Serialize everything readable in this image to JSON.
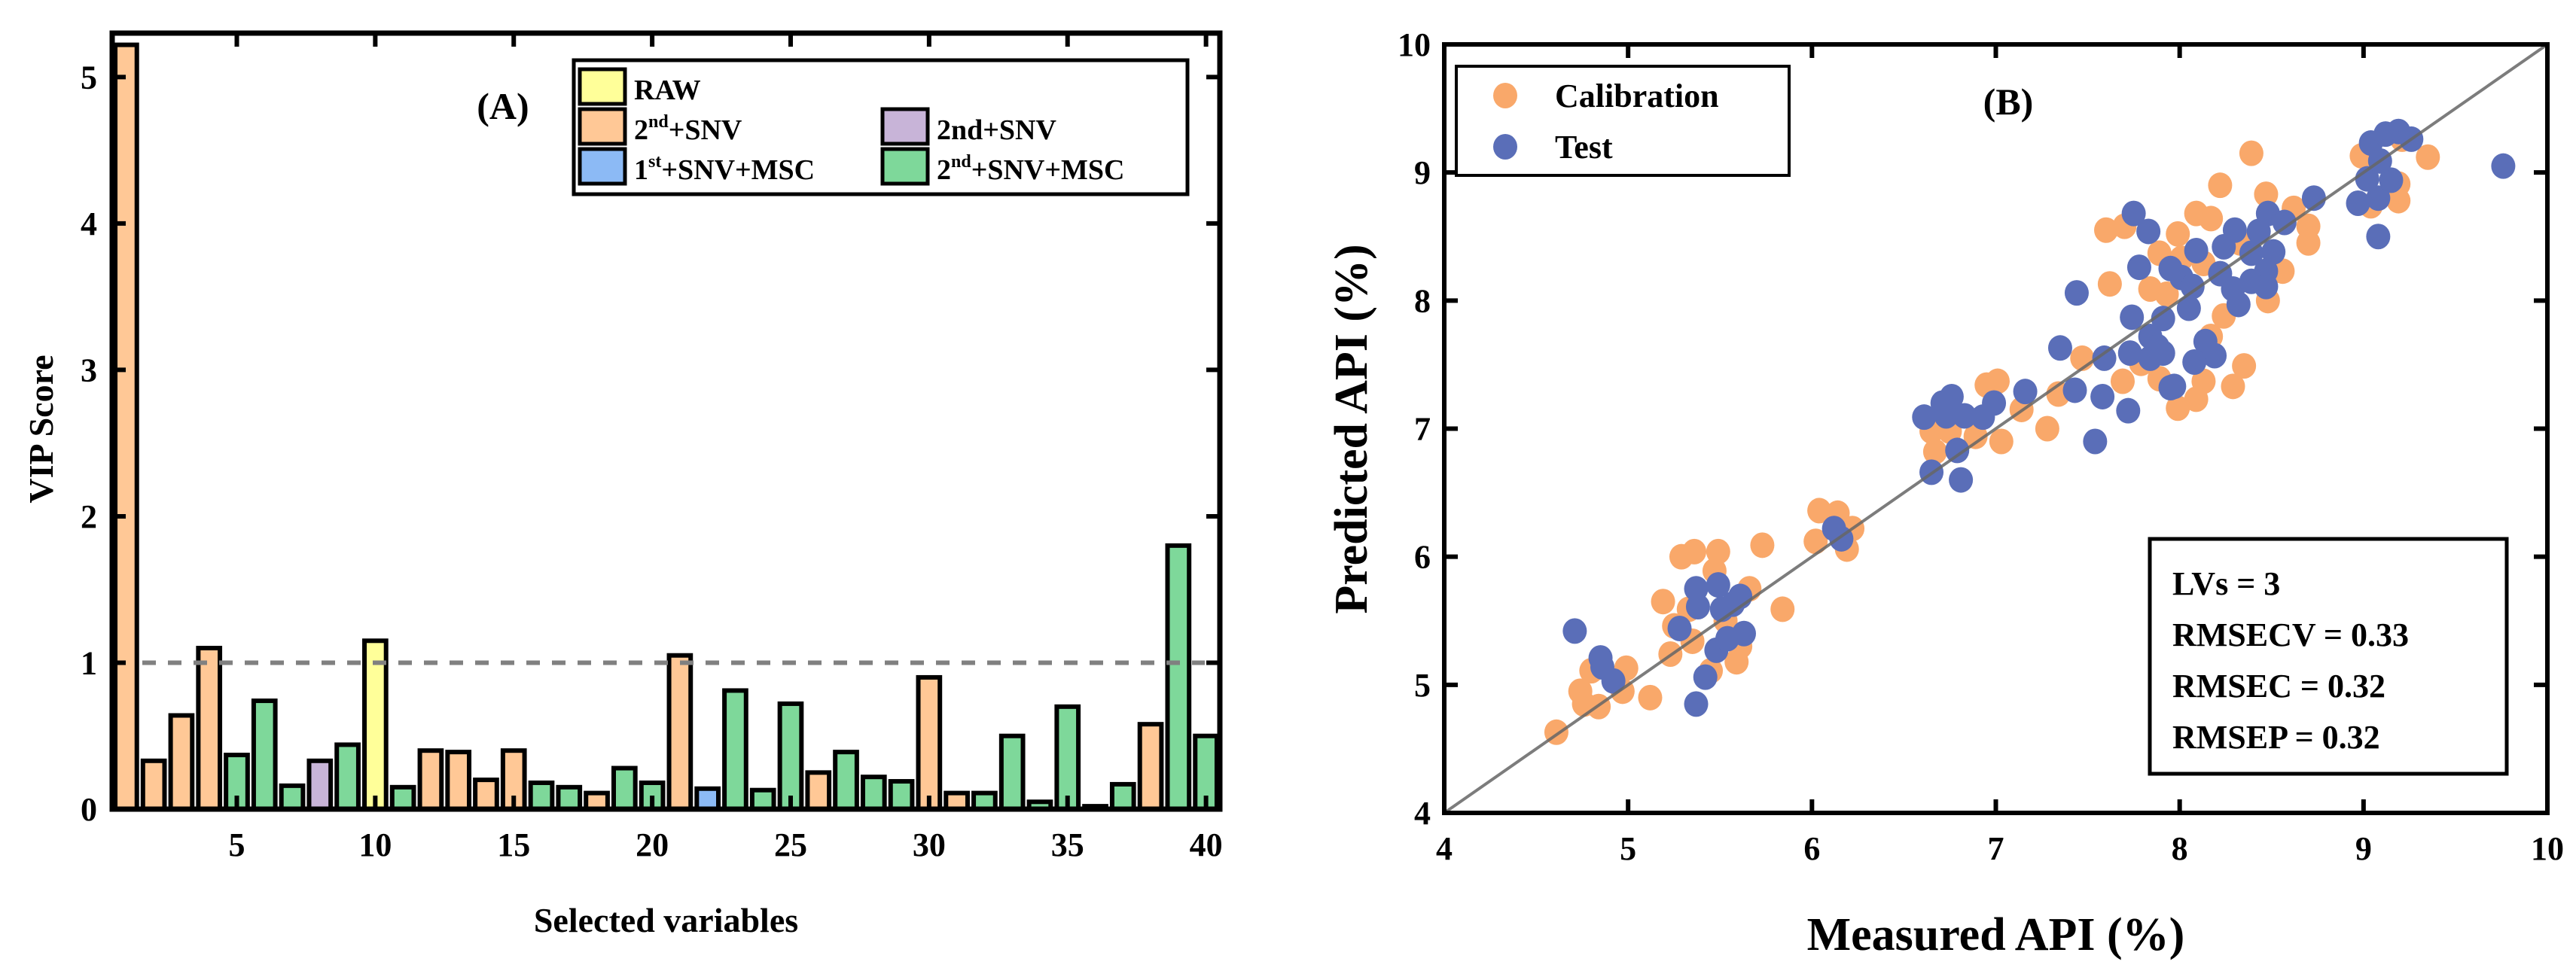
{
  "chart_data": [
    {
      "type": "bar",
      "panel_label": "(A)",
      "xlabel": "Selected variables",
      "ylabel": "VIP Score",
      "xlim": [
        0.5,
        40.5
      ],
      "ylim": [
        0,
        5.3
      ],
      "xticks": [
        5,
        10,
        15,
        20,
        25,
        30,
        35,
        40
      ],
      "yticks": [
        0,
        1,
        2,
        3,
        4,
        5
      ],
      "threshold": 1,
      "legend_position": "top-right",
      "legend": [
        {
          "key": "raw",
          "main": "RAW",
          "sup": "",
          "rest": "",
          "color": "#FFFF99"
        },
        {
          "key": "d2snv",
          "main": "2",
          "sup": "nd",
          "rest": "+SNV",
          "color": "#FFC896"
        },
        {
          "key": "d2snv_b",
          "main": "2nd+SNV",
          "sup": "",
          "rest": "",
          "color": "#C8B4D8"
        },
        {
          "key": "d1snvmsc",
          "main": "1",
          "sup": "st",
          "rest": "+SNV+MSC",
          "color": "#8CBAF5"
        },
        {
          "key": "d2snvmsc",
          "main": "2",
          "sup": "nd",
          "rest": "+SNV+MSC",
          "color": "#7ED89A"
        }
      ],
      "categories": [
        1,
        2,
        3,
        4,
        5,
        6,
        7,
        8,
        9,
        10,
        11,
        12,
        13,
        14,
        15,
        16,
        17,
        18,
        19,
        20,
        21,
        22,
        23,
        24,
        25,
        26,
        27,
        28,
        29,
        30,
        31,
        32,
        33,
        34,
        35,
        36,
        37,
        38,
        39,
        40
      ],
      "values": [
        5.22,
        0.33,
        0.64,
        1.1,
        0.37,
        0.74,
        0.16,
        0.33,
        0.44,
        1.15,
        0.15,
        0.4,
        0.39,
        0.2,
        0.4,
        0.18,
        0.15,
        0.11,
        0.28,
        0.18,
        1.05,
        0.14,
        0.81,
        0.13,
        0.72,
        0.25,
        0.39,
        0.22,
        0.19,
        0.9,
        0.11,
        0.11,
        0.5,
        0.05,
        0.7,
        0.02,
        0.17,
        0.58,
        1.8,
        0.5
      ],
      "groups": [
        "d2snv",
        "d2snv",
        "d2snv",
        "d2snv",
        "d2snvmsc",
        "d2snvmsc",
        "d2snvmsc",
        "d2snv_b",
        "d2snvmsc",
        "raw",
        "d2snvmsc",
        "d2snv",
        "d2snv",
        "d2snv",
        "d2snv",
        "d2snvmsc",
        "d2snvmsc",
        "d2snv",
        "d2snvmsc",
        "d2snvmsc",
        "d2snv",
        "d1snvmsc",
        "d2snvmsc",
        "d2snvmsc",
        "d2snvmsc",
        "d2snv",
        "d2snvmsc",
        "d2snvmsc",
        "d2snvmsc",
        "d2snv",
        "d2snv",
        "d2snvmsc",
        "d2snvmsc",
        "d2snvmsc",
        "d2snvmsc",
        "d2snvmsc",
        "d2snvmsc",
        "d2snv",
        "d2snvmsc",
        "d2snvmsc"
      ]
    },
    {
      "type": "scatter",
      "panel_label": "(B)",
      "xlabel": "Measured API (%)",
      "ylabel": "Predicted API (%)",
      "xlim": [
        4,
        10
      ],
      "ylim": [
        4,
        10
      ],
      "xticks": [
        4,
        5,
        6,
        7,
        8,
        9,
        10
      ],
      "yticks": [
        4,
        5,
        6,
        7,
        8,
        9,
        10
      ],
      "legend_position": "top-left",
      "stats": [
        "LVs = 3",
        "RMSECV = 0.33",
        "RMSEC = 0.32",
        "RMSEP = 0.32"
      ],
      "series": [
        {
          "name": "Calibration",
          "color": "#F9A86A",
          "points": [
            [
              4.61,
              4.63
            ],
            [
              4.74,
              4.95
            ],
            [
              4.76,
              4.85
            ],
            [
              4.8,
              5.11
            ],
            [
              4.84,
              4.83
            ],
            [
              4.97,
              4.95
            ],
            [
              4.99,
              5.13
            ],
            [
              5.12,
              4.9
            ],
            [
              5.19,
              5.65
            ],
            [
              5.29,
              6.0
            ],
            [
              5.36,
              6.04
            ],
            [
              5.49,
              6.04
            ],
            [
              5.47,
              5.89
            ],
            [
              5.25,
              5.46
            ],
            [
              5.23,
              5.24
            ],
            [
              5.35,
              5.34
            ],
            [
              5.33,
              5.59
            ],
            [
              5.45,
              5.11
            ],
            [
              5.59,
              5.18
            ],
            [
              5.61,
              5.3
            ],
            [
              5.66,
              5.75
            ],
            [
              5.73,
              6.09
            ],
            [
              5.84,
              5.59
            ],
            [
              5.53,
              5.5
            ],
            [
              6.04,
              6.36
            ],
            [
              6.14,
              6.34
            ],
            [
              6.02,
              6.12
            ],
            [
              6.22,
              6.22
            ],
            [
              6.19,
              6.06
            ],
            [
              6.67,
              6.82
            ],
            [
              6.65,
              6.98
            ],
            [
              6.75,
              6.98
            ],
            [
              6.89,
              6.94
            ],
            [
              6.95,
              7.34
            ],
            [
              7.01,
              7.37
            ],
            [
              7.03,
              6.9
            ],
            [
              7.14,
              7.15
            ],
            [
              7.28,
              7.0
            ],
            [
              7.34,
              7.27
            ],
            [
              7.47,
              7.55
            ],
            [
              7.6,
              8.55
            ],
            [
              7.7,
              8.58
            ],
            [
              7.62,
              8.13
            ],
            [
              7.69,
              7.37
            ],
            [
              7.84,
              8.09
            ],
            [
              7.89,
              8.37
            ],
            [
              7.99,
              8.52
            ],
            [
              8.09,
              8.68
            ],
            [
              8.17,
              8.64
            ],
            [
              8.22,
              8.9
            ],
            [
              8.39,
              9.15
            ],
            [
              8.47,
              8.83
            ],
            [
              8.62,
              8.72
            ],
            [
              8.7,
              8.58
            ],
            [
              8.7,
              8.45
            ],
            [
              8.56,
              8.23
            ],
            [
              8.48,
              8.0
            ],
            [
              8.24,
              7.88
            ],
            [
              8.17,
              7.72
            ],
            [
              8.13,
              7.37
            ],
            [
              8.29,
              7.33
            ],
            [
              8.35,
              7.49
            ],
            [
              7.99,
              7.16
            ],
            [
              8.09,
              7.23
            ],
            [
              7.89,
              7.39
            ],
            [
              7.79,
              7.51
            ],
            [
              7.93,
              8.05
            ],
            [
              8.01,
              8.33
            ],
            [
              8.13,
              8.29
            ],
            [
              8.33,
              8.45
            ],
            [
              8.99,
              9.13
            ],
            [
              9.04,
              8.74
            ],
            [
              9.19,
              8.78
            ],
            [
              9.19,
              8.91
            ],
            [
              9.35,
              9.12
            ],
            [
              9.21,
              9.26
            ]
          ]
        },
        {
          "name": "Test",
          "color": "#5A6EB8",
          "points": [
            [
              4.71,
              5.42
            ],
            [
              4.85,
              5.21
            ],
            [
              4.86,
              5.14
            ],
            [
              4.92,
              5.03
            ],
            [
              5.37,
              4.85
            ],
            [
              5.42,
              5.06
            ],
            [
              5.28,
              5.44
            ],
            [
              5.37,
              5.75
            ],
            [
              5.38,
              5.61
            ],
            [
              5.49,
              5.78
            ],
            [
              5.48,
              5.27
            ],
            [
              5.54,
              5.36
            ],
            [
              5.63,
              5.4
            ],
            [
              5.51,
              5.59
            ],
            [
              5.57,
              5.63
            ],
            [
              5.61,
              5.69
            ],
            [
              6.12,
              6.22
            ],
            [
              6.16,
              6.14
            ],
            [
              6.61,
              7.09
            ],
            [
              6.71,
              7.2
            ],
            [
              6.76,
              7.25
            ],
            [
              6.73,
              7.1
            ],
            [
              6.83,
              7.1
            ],
            [
              6.93,
              7.09
            ],
            [
              6.99,
              7.2
            ],
            [
              6.79,
              6.83
            ],
            [
              6.65,
              6.66
            ],
            [
              6.81,
              6.6
            ],
            [
              7.16,
              7.29
            ],
            [
              7.35,
              7.63
            ],
            [
              7.43,
              7.3
            ],
            [
              7.44,
              8.06
            ],
            [
              7.58,
              7.25
            ],
            [
              7.54,
              6.9
            ],
            [
              7.72,
              7.14
            ],
            [
              7.59,
              7.55
            ],
            [
              7.73,
              7.59
            ],
            [
              7.74,
              7.87
            ],
            [
              7.84,
              7.72
            ],
            [
              7.88,
              7.64
            ],
            [
              7.84,
              7.55
            ],
            [
              7.91,
              7.59
            ],
            [
              7.91,
              7.86
            ],
            [
              7.95,
              7.32
            ],
            [
              7.97,
              7.33
            ],
            [
              7.75,
              8.68
            ],
            [
              7.83,
              8.54
            ],
            [
              7.78,
              8.26
            ],
            [
              7.95,
              8.25
            ],
            [
              8.01,
              8.18
            ],
            [
              8.05,
              7.94
            ],
            [
              8.09,
              8.39
            ],
            [
              8.07,
              8.11
            ],
            [
              8.14,
              7.68
            ],
            [
              8.19,
              7.57
            ],
            [
              8.08,
              7.52
            ],
            [
              8.24,
              8.42
            ],
            [
              8.22,
              8.21
            ],
            [
              8.29,
              8.09
            ],
            [
              8.32,
              7.97
            ],
            [
              8.3,
              8.55
            ],
            [
              8.39,
              8.15
            ],
            [
              8.39,
              8.37
            ],
            [
              8.43,
              8.54
            ],
            [
              8.48,
              8.68
            ],
            [
              8.47,
              8.23
            ],
            [
              8.47,
              8.11
            ],
            [
              8.51,
              8.38
            ],
            [
              8.57,
              8.61
            ],
            [
              8.73,
              8.8
            ],
            [
              8.97,
              8.76
            ],
            [
              9.08,
              8.8
            ],
            [
              9.08,
              8.5
            ],
            [
              9.02,
              8.95
            ],
            [
              9.15,
              8.94
            ],
            [
              9.09,
              9.09
            ],
            [
              9.04,
              9.23
            ],
            [
              9.12,
              9.3
            ],
            [
              9.19,
              9.32
            ],
            [
              9.26,
              9.26
            ],
            [
              9.76,
              9.05
            ]
          ]
        }
      ]
    }
  ]
}
